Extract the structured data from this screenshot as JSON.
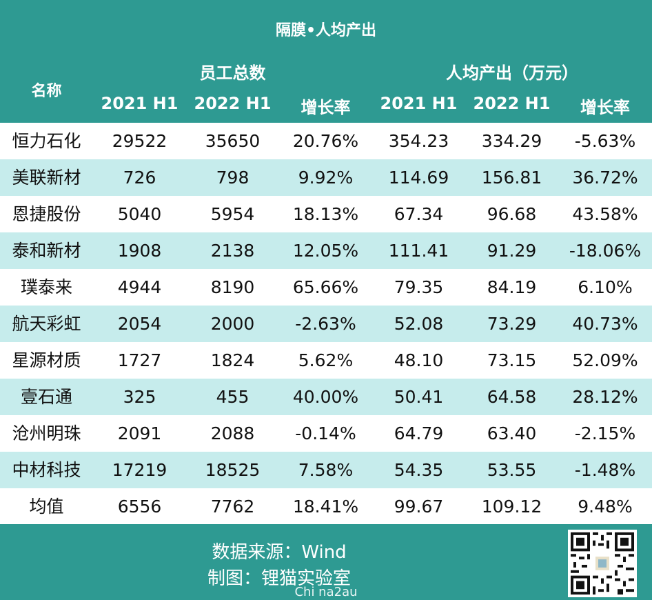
{
  "title": "隔膜•人均产出",
  "header": {
    "name_label": "名称",
    "group1": "员工总数",
    "group2": "人均产出（万元）",
    "sub": [
      "2021 H1",
      "2022 H1",
      "增长率",
      "2021 H1",
      "2022 H1",
      "增长率"
    ]
  },
  "rows": [
    [
      "恒力石化",
      "29522",
      "35650",
      "20.76%",
      "354.23",
      "334.29",
      "-5.63%"
    ],
    [
      "美联新材",
      "726",
      "798",
      "9.92%",
      "114.69",
      "156.81",
      "36.72%"
    ],
    [
      "恩捷股份",
      "5040",
      "5954",
      "18.13%",
      "67.34",
      "96.68",
      "43.58%"
    ],
    [
      "泰和新材",
      "1908",
      "2138",
      "12.05%",
      "111.41",
      "91.29",
      "-18.06%"
    ],
    [
      "璞泰来",
      "4944",
      "8190",
      "65.66%",
      "79.35",
      "84.19",
      "6.10%"
    ],
    [
      "航天彩虹",
      "2054",
      "2000",
      "-2.63%",
      "52.08",
      "73.29",
      "40.73%"
    ],
    [
      "星源材质",
      "1727",
      "1824",
      "5.62%",
      "48.10",
      "73.15",
      "52.09%"
    ],
    [
      "壹石通",
      "325",
      "455",
      "40.00%",
      "50.41",
      "64.58",
      "28.12%"
    ],
    [
      "沧州明珠",
      "2091",
      "2088",
      "-0.14%",
      "64.79",
      "63.40",
      "-2.15%"
    ],
    [
      "中材科技",
      "17219",
      "18525",
      "7.58%",
      "54.35",
      "53.55",
      "-1.48%"
    ],
    [
      "均值",
      "6556",
      "7762",
      "18.41%",
      "99.67",
      "109.12",
      "9.48%"
    ]
  ],
  "footer": {
    "source": "数据来源：Wind",
    "maker": "制图：锂猫实验室",
    "watermark": "Chi na2au"
  },
  "colors": {
    "header_bg": "#2e9a92",
    "row_alt_bg": "#c6ecec"
  }
}
